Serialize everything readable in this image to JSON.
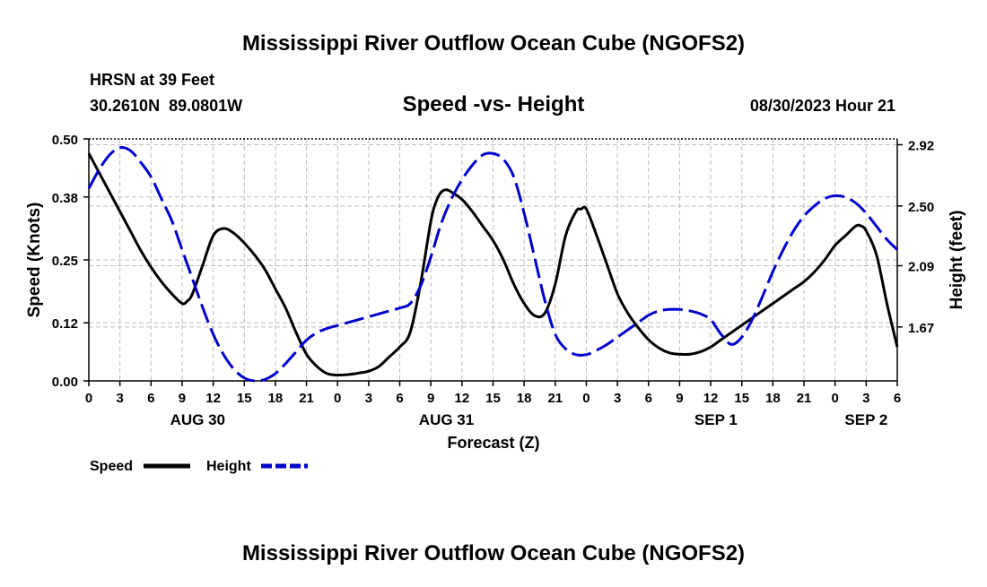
{
  "page": {
    "title": "Mississippi River Outflow Ocean Cube (NGOFS2)",
    "footer_title": "Mississippi River Outflow Ocean Cube (NGOFS2)",
    "station": "HRSN at 39 Feet",
    "coords": "30.2610N  89.0801W",
    "subtitle": "Speed -vs- Height",
    "datetime": "08/30/2023 Hour 21"
  },
  "chart_data": {
    "type": "line",
    "title": "Speed -vs- Height",
    "xlabel": "Forecast (Z)",
    "ylabel": "Speed (Knots)",
    "y2label": "Height (feet)",
    "x_range": [
      0,
      78
    ],
    "ylim": [
      0,
      0.5
    ],
    "y2lim": [
      1.3,
      2.96
    ],
    "grid": true,
    "x_ticks": [
      0,
      3,
      6,
      9,
      12,
      15,
      18,
      21,
      24,
      27,
      30,
      33,
      36,
      39,
      42,
      45,
      48,
      51,
      54,
      57,
      60,
      63,
      66,
      69,
      72,
      75,
      78
    ],
    "x_tick_labels": [
      "0",
      "3",
      "6",
      "9",
      "12",
      "15",
      "18",
      "21",
      "0",
      "3",
      "6",
      "9",
      "12",
      "15",
      "18",
      "21",
      "0",
      "3",
      "6",
      "9",
      "12",
      "15",
      "18",
      "21",
      "0",
      "3",
      "6"
    ],
    "y_ticks": [
      0.0,
      0.12,
      0.25,
      0.38,
      0.5
    ],
    "y_tick_labels": [
      "0.00",
      "0.12",
      "0.25",
      "0.38",
      "0.50"
    ],
    "y2_ticks": [
      1.67,
      2.09,
      2.5,
      2.92
    ],
    "y2_tick_labels": [
      "1.67",
      "2.09",
      "2.50",
      "2.92"
    ],
    "date_labels": [
      {
        "x": 10.5,
        "label": "AUG 30"
      },
      {
        "x": 34.5,
        "label": "AUG 31"
      },
      {
        "x": 60.5,
        "label": "SEP 1"
      },
      {
        "x": 75.0,
        "label": "SEP 2"
      }
    ],
    "legend": [
      {
        "name": "Speed",
        "color": "#000000",
        "style": "solid"
      },
      {
        "name": "Height",
        "color": "#0000cc",
        "style": "dashed"
      }
    ],
    "series": [
      {
        "name": "Speed",
        "axis": "left",
        "color": "#000000",
        "x": [
          0,
          1,
          2,
          3,
          4,
          5,
          6,
          7,
          8,
          9,
          9.5,
          10,
          11,
          12,
          13,
          14,
          15,
          16,
          17,
          18,
          19,
          20,
          21,
          22,
          23,
          24,
          25,
          26,
          27,
          28,
          29,
          30,
          31,
          32,
          33,
          33.5,
          34,
          34.5,
          35,
          36,
          37,
          38,
          39,
          40,
          41,
          42,
          43,
          44,
          45,
          46,
          47,
          47.5,
          48,
          49,
          50,
          51,
          52,
          53,
          54,
          55,
          56,
          57,
          58,
          59,
          60,
          61,
          62,
          63,
          64,
          65,
          66,
          67,
          68,
          69,
          70,
          71,
          72,
          73,
          74,
          74.5,
          75,
          76,
          77,
          78
        ],
        "values": [
          0.47,
          0.43,
          0.39,
          0.35,
          0.31,
          0.27,
          0.235,
          0.205,
          0.18,
          0.16,
          0.165,
          0.18,
          0.24,
          0.3,
          0.315,
          0.305,
          0.285,
          0.26,
          0.23,
          0.19,
          0.15,
          0.1,
          0.055,
          0.03,
          0.015,
          0.012,
          0.013,
          0.016,
          0.02,
          0.03,
          0.05,
          0.07,
          0.1,
          0.2,
          0.33,
          0.37,
          0.39,
          0.395,
          0.39,
          0.375,
          0.35,
          0.32,
          0.29,
          0.25,
          0.2,
          0.16,
          0.135,
          0.14,
          0.2,
          0.3,
          0.35,
          0.355,
          0.355,
          0.3,
          0.24,
          0.18,
          0.14,
          0.11,
          0.085,
          0.068,
          0.058,
          0.055,
          0.055,
          0.06,
          0.07,
          0.085,
          0.1,
          0.115,
          0.13,
          0.145,
          0.16,
          0.175,
          0.19,
          0.205,
          0.225,
          0.25,
          0.28,
          0.3,
          0.32,
          0.32,
          0.31,
          0.26,
          0.16,
          0.07
        ]
      },
      {
        "name": "Height",
        "axis": "right",
        "color": "#0000cc",
        "x": [
          0,
          1,
          2,
          3,
          4,
          5,
          6,
          7,
          8,
          9,
          10,
          11,
          12,
          13,
          14,
          15,
          16,
          17,
          18,
          19,
          20,
          21,
          22,
          23,
          24,
          25,
          26,
          27,
          28,
          29,
          30,
          31,
          32,
          33,
          34,
          35,
          36,
          37,
          38,
          39,
          40,
          41,
          42,
          43,
          44,
          45,
          46,
          47,
          48,
          49,
          50,
          51,
          52,
          53,
          54,
          55,
          56,
          57,
          58,
          59,
          60,
          61,
          62,
          63,
          64,
          65,
          66,
          67,
          68,
          69,
          70,
          71,
          72,
          73,
          74,
          75,
          76,
          77,
          78
        ],
        "values": [
          2.62,
          2.75,
          2.85,
          2.9,
          2.88,
          2.8,
          2.7,
          2.55,
          2.4,
          2.2,
          2.0,
          1.8,
          1.62,
          1.48,
          1.38,
          1.32,
          1.3,
          1.31,
          1.35,
          1.42,
          1.5,
          1.58,
          1.63,
          1.66,
          1.68,
          1.7,
          1.72,
          1.74,
          1.76,
          1.78,
          1.8,
          1.83,
          1.95,
          2.15,
          2.38,
          2.55,
          2.68,
          2.78,
          2.85,
          2.86,
          2.82,
          2.7,
          2.45,
          2.15,
          1.85,
          1.62,
          1.52,
          1.48,
          1.48,
          1.51,
          1.55,
          1.6,
          1.65,
          1.7,
          1.75,
          1.78,
          1.79,
          1.79,
          1.78,
          1.76,
          1.72,
          1.62,
          1.55,
          1.6,
          1.72,
          1.88,
          2.05,
          2.2,
          2.33,
          2.43,
          2.5,
          2.55,
          2.57,
          2.56,
          2.52,
          2.45,
          2.36,
          2.27,
          2.2
        ]
      }
    ]
  }
}
